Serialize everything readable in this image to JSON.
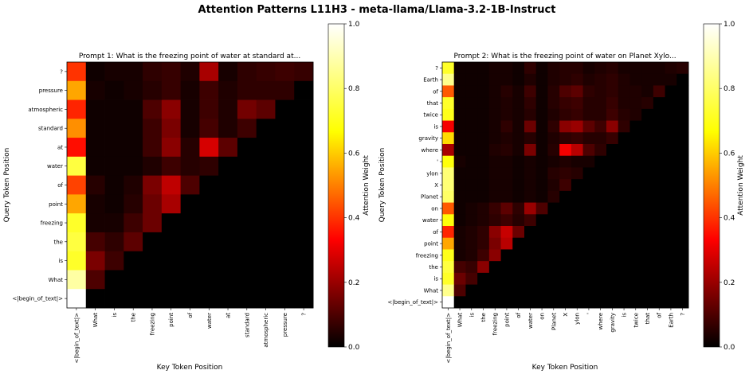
{
  "figure_title": "Attention Patterns L11H3 - meta-llama/Llama-3.2-1B-Instruct",
  "colormap": [
    "#000000",
    "#ff0000",
    "#ffff00",
    "#ffffff"
  ],
  "chart_data": [
    {
      "type": "heatmap",
      "title": "Prompt 1: What is the freezing point of water at standard at...",
      "xlabel": "Key Token Position",
      "ylabel": "Query Token Position",
      "colorbar_label": "Attention Weight",
      "colorbar_ticks": [
        "0.0",
        "0.2",
        "0.4",
        "0.6",
        "0.8",
        "1.0"
      ],
      "vlim": [
        0,
        1
      ],
      "x_tokens": [
        "<|begin_of_text|>",
        "What",
        "is",
        "the",
        "freezing",
        "point",
        "of",
        "water",
        "at",
        "standard",
        "atmospheric",
        "pressure",
        "?"
      ],
      "y_tokens_top_to_bottom": [
        "?",
        "pressure",
        "atmospheric",
        "standard",
        "at",
        "water",
        "of",
        "point",
        "freezing",
        "the",
        "is",
        "What",
        "<|begin_of_text|>"
      ],
      "rows_top_to_bottom": [
        [
          0.4,
          0.02,
          0.03,
          0.03,
          0.06,
          0.07,
          0.04,
          0.22,
          0.03,
          0.06,
          0.07,
          0.08,
          0.07
        ],
        [
          0.55,
          0.03,
          0.02,
          0.03,
          0.05,
          0.07,
          0.03,
          0.08,
          0.04,
          0.06,
          0.06,
          0.06,
          0
        ],
        [
          0.38,
          0.02,
          0.02,
          0.02,
          0.1,
          0.18,
          0.03,
          0.08,
          0.04,
          0.15,
          0.12,
          0,
          0
        ],
        [
          0.52,
          0.02,
          0.02,
          0.02,
          0.08,
          0.16,
          0.03,
          0.09,
          0.04,
          0.08,
          0,
          0,
          0
        ],
        [
          0.35,
          0.02,
          0.02,
          0.02,
          0.08,
          0.18,
          0.05,
          0.28,
          0.12,
          0,
          0,
          0,
          0
        ],
        [
          0.75,
          0.02,
          0.02,
          0.02,
          0.04,
          0.08,
          0.05,
          0.06,
          0,
          0,
          0,
          0,
          0
        ],
        [
          0.42,
          0.05,
          0.02,
          0.04,
          0.16,
          0.25,
          0.1,
          0,
          0,
          0,
          0,
          0,
          0
        ],
        [
          0.55,
          0.03,
          0.02,
          0.05,
          0.14,
          0.22,
          0,
          0,
          0,
          0,
          0,
          0,
          0
        ],
        [
          0.72,
          0.03,
          0.03,
          0.08,
          0.14,
          0,
          0,
          0,
          0,
          0,
          0,
          0,
          0
        ],
        [
          0.75,
          0.09,
          0.06,
          0.12,
          0,
          0,
          0,
          0,
          0,
          0,
          0,
          0,
          0
        ],
        [
          0.72,
          0.16,
          0.08,
          0,
          0,
          0,
          0,
          0,
          0,
          0,
          0,
          0,
          0
        ],
        [
          0.88,
          0.1,
          0,
          0,
          0,
          0,
          0,
          0,
          0,
          0,
          0,
          0,
          0
        ],
        [
          1.0,
          0,
          0,
          0,
          0,
          0,
          0,
          0,
          0,
          0,
          0,
          0,
          0
        ]
      ]
    },
    {
      "type": "heatmap",
      "title": "Prompt 2: What is the freezing point of water on Planet Xylo...",
      "xlabel": "Key Token Position",
      "ylabel": "Query Token Position",
      "colorbar_label": "Attention Weight",
      "colorbar_ticks": [
        "0.0",
        "0.2",
        "0.4",
        "0.6",
        "0.8",
        "1.0"
      ],
      "vlim": [
        0,
        1
      ],
      "x_tokens": [
        "<|begin_of_text|>",
        "What",
        "is",
        "the",
        "freezing",
        "point",
        "of",
        "water",
        "on",
        "Planet",
        "X",
        "ylon",
        "'",
        "where",
        "gravity",
        "is",
        "twice",
        "that",
        "of",
        "Earth",
        "?"
      ],
      "y_tokens_top_to_bottom": [
        "?",
        "Earth",
        "of",
        "that",
        "twice",
        "is",
        "gravity",
        "where",
        "'",
        "ylon",
        "X",
        "Planet",
        "on",
        "water",
        "of",
        "point",
        "freezing",
        "the",
        "is",
        "What",
        "<|begin_of_text|>"
      ],
      "rows_top_to_bottom": [
        [
          0.72,
          0.02,
          0.02,
          0.02,
          0.03,
          0.03,
          0.02,
          0.06,
          0.02,
          0.04,
          0.05,
          0.05,
          0.03,
          0.04,
          0.05,
          0.03,
          0.03,
          0.03,
          0.03,
          0.04,
          0.05
        ],
        [
          0.85,
          0.02,
          0.02,
          0.02,
          0.03,
          0.03,
          0.02,
          0.04,
          0.02,
          0.04,
          0.05,
          0.06,
          0.04,
          0.05,
          0.06,
          0.04,
          0.03,
          0.03,
          0.03,
          0.03,
          0
        ],
        [
          0.45,
          0.02,
          0.02,
          0.02,
          0.03,
          0.05,
          0.03,
          0.08,
          0.02,
          0.05,
          0.1,
          0.12,
          0.06,
          0.05,
          0.06,
          0.04,
          0.04,
          0.03,
          0.08,
          0,
          0
        ],
        [
          0.72,
          0.02,
          0.02,
          0.02,
          0.03,
          0.04,
          0.03,
          0.06,
          0.02,
          0.05,
          0.07,
          0.08,
          0.05,
          0.05,
          0.07,
          0.04,
          0.04,
          0.05,
          0,
          0,
          0
        ],
        [
          0.7,
          0.02,
          0.02,
          0.02,
          0.03,
          0.04,
          0.03,
          0.05,
          0.02,
          0.04,
          0.06,
          0.07,
          0.05,
          0.05,
          0.08,
          0.05,
          0.04,
          0,
          0,
          0,
          0
        ],
        [
          0.32,
          0.02,
          0.02,
          0.02,
          0.03,
          0.06,
          0.03,
          0.14,
          0.02,
          0.06,
          0.18,
          0.2,
          0.12,
          0.08,
          0.18,
          0.06,
          0,
          0,
          0,
          0,
          0
        ],
        [
          0.62,
          0.02,
          0.02,
          0.02,
          0.03,
          0.04,
          0.03,
          0.05,
          0.02,
          0.04,
          0.06,
          0.07,
          0.05,
          0.05,
          0.07,
          0,
          0,
          0,
          0,
          0,
          0
        ],
        [
          0.22,
          0.02,
          0.02,
          0.02,
          0.04,
          0.05,
          0.03,
          0.16,
          0.02,
          0.05,
          0.32,
          0.24,
          0.1,
          0.06,
          0,
          0,
          0,
          0,
          0,
          0,
          0
        ],
        [
          0.68,
          0.03,
          0.02,
          0.02,
          0.03,
          0.03,
          0.02,
          0.03,
          0.02,
          0.03,
          0.04,
          0.03,
          0.03,
          0,
          0,
          0,
          0,
          0,
          0,
          0,
          0
        ],
        [
          0.82,
          0.02,
          0.02,
          0.02,
          0.03,
          0.03,
          0.02,
          0.03,
          0.02,
          0.05,
          0.06,
          0.05,
          0,
          0,
          0,
          0,
          0,
          0,
          0,
          0,
          0
        ],
        [
          0.82,
          0.02,
          0.02,
          0.02,
          0.03,
          0.03,
          0.02,
          0.03,
          0.02,
          0.04,
          0.08,
          0,
          0,
          0,
          0,
          0,
          0,
          0,
          0,
          0,
          0
        ],
        [
          0.8,
          0.02,
          0.02,
          0.02,
          0.03,
          0.03,
          0.02,
          0.03,
          0.02,
          0.05,
          0,
          0,
          0,
          0,
          0,
          0,
          0,
          0,
          0,
          0,
          0
        ],
        [
          0.45,
          0.02,
          0.03,
          0.04,
          0.07,
          0.12,
          0.06,
          0.2,
          0.1,
          0,
          0,
          0,
          0,
          0,
          0,
          0,
          0,
          0,
          0,
          0,
          0
        ],
        [
          0.68,
          0.02,
          0.03,
          0.04,
          0.06,
          0.08,
          0.05,
          0.08,
          0,
          0,
          0,
          0,
          0,
          0,
          0,
          0,
          0,
          0,
          0,
          0,
          0
        ],
        [
          0.38,
          0.03,
          0.04,
          0.06,
          0.18,
          0.26,
          0.14,
          0,
          0,
          0,
          0,
          0,
          0,
          0,
          0,
          0,
          0,
          0,
          0,
          0,
          0
        ],
        [
          0.55,
          0.03,
          0.04,
          0.06,
          0.16,
          0.24,
          0,
          0,
          0,
          0,
          0,
          0,
          0,
          0,
          0,
          0,
          0,
          0,
          0,
          0,
          0
        ],
        [
          0.7,
          0.03,
          0.04,
          0.08,
          0.18,
          0,
          0,
          0,
          0,
          0,
          0,
          0,
          0,
          0,
          0,
          0,
          0,
          0,
          0,
          0,
          0
        ],
        [
          0.75,
          0.09,
          0.07,
          0.18,
          0,
          0,
          0,
          0,
          0,
          0,
          0,
          0,
          0,
          0,
          0,
          0,
          0,
          0,
          0,
          0,
          0
        ],
        [
          0.72,
          0.14,
          0.09,
          0,
          0,
          0,
          0,
          0,
          0,
          0,
          0,
          0,
          0,
          0,
          0,
          0,
          0,
          0,
          0,
          0,
          0
        ],
        [
          0.85,
          0.1,
          0,
          0,
          0,
          0,
          0,
          0,
          0,
          0,
          0,
          0,
          0,
          0,
          0,
          0,
          0,
          0,
          0,
          0,
          0
        ],
        [
          1.0,
          0,
          0,
          0,
          0,
          0,
          0,
          0,
          0,
          0,
          0,
          0,
          0,
          0,
          0,
          0,
          0,
          0,
          0,
          0,
          0
        ]
      ]
    }
  ]
}
